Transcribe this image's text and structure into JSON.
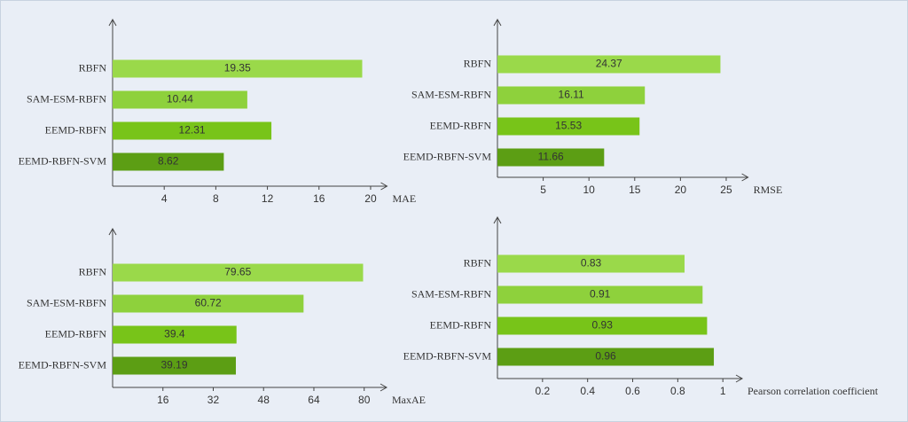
{
  "chart_data": [
    {
      "type": "bar",
      "xlabel": "MAE",
      "categories": [
        "RBFN",
        "SAM-ESM-RBFN",
        "EEMD-RBFN",
        "EEMD-RBFN-SVM"
      ],
      "values": [
        19.35,
        10.44,
        12.31,
        8.62
      ],
      "colors": [
        "#9ad94a",
        "#8ed13c",
        "#78c419",
        "#5c9e14"
      ],
      "xlim": [
        0,
        21
      ],
      "xticks": [
        4,
        8,
        12,
        16,
        20
      ]
    },
    {
      "type": "bar",
      "xlabel": "RMSE",
      "categories": [
        "RBFN",
        "SAM-ESM-RBFN",
        "EEMD-RBFN",
        "EEMD-RBFN-SVM"
      ],
      "values": [
        24.37,
        16.11,
        15.53,
        11.66
      ],
      "colors": [
        "#9ad94a",
        "#8ed13c",
        "#78c419",
        "#5c9e14"
      ],
      "xlim": [
        0,
        27
      ],
      "xticks": [
        5,
        10,
        15,
        20,
        25
      ]
    },
    {
      "type": "bar",
      "xlabel": "MaxAE",
      "categories": [
        "RBFN",
        "SAM-ESM-RBFN",
        "EEMD-RBFN",
        "EEMD-RBFN-SVM"
      ],
      "values": [
        79.65,
        60.72,
        39.4,
        39.19
      ],
      "colors": [
        "#9ad94a",
        "#8ed13c",
        "#78c419",
        "#5c9e14"
      ],
      "xlim": [
        0,
        86
      ],
      "xticks": [
        16,
        32,
        48,
        64,
        80
      ]
    },
    {
      "type": "bar",
      "xlabel": "Pearson correlation coefficient",
      "categories": [
        "RBFN",
        "SAM-ESM-RBFN",
        "EEMD-RBFN",
        "EEMD-RBFN-SVM"
      ],
      "values": [
        0.83,
        0.91,
        0.93,
        0.96
      ],
      "colors": [
        "#9ad94a",
        "#8ed13c",
        "#78c419",
        "#5c9e14"
      ],
      "xlim": [
        0,
        1.07
      ],
      "xticks": [
        0.2,
        0.4,
        0.6,
        0.8,
        1
      ]
    }
  ]
}
